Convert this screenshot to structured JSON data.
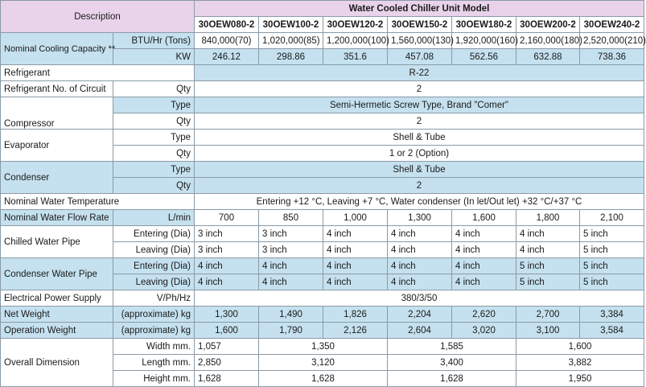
{
  "header": {
    "description": "Description",
    "title": "Water Cooled Chiller Unit Model",
    "models": [
      "30OEW080-2",
      "30OEW100-2",
      "30OEW120-2",
      "30OEW150-2",
      "30OEW180-2",
      "30OEW200-2",
      "30OEW240-2"
    ]
  },
  "capacity": {
    "label": "Nominal Cooling Capacity **",
    "btu_unit": "BTU/Hr (Tons)",
    "btu_values": [
      "840,000(70)",
      "1,020,000(85)",
      "1,200,000(100)",
      "1,560,000(130)",
      "1,920,000(160)",
      "2,160,000(180)",
      "2,520,000(210)"
    ],
    "kw_unit": "KW",
    "kw_values": [
      "246.12",
      "298.86",
      "351.6",
      "457.08",
      "562.56",
      "632.88",
      "738.36"
    ]
  },
  "refrigerant": {
    "label": "Refrigerant",
    "value": "R-22"
  },
  "circuit": {
    "label": "Refrigerant No. of Circuit",
    "unit": "Qty",
    "value": "2"
  },
  "compressor": {
    "label": "Compressor",
    "type_label": "Type",
    "type_value": "Semi-Hermetic Screw Type, Brand \"Comer\"",
    "qty_label": "Qty",
    "qty_value": "2"
  },
  "evaporator": {
    "label": "Evaporator",
    "type_label": "Type",
    "type_value": "Shell & Tube",
    "qty_label": "Qty",
    "qty_value": "1 or 2 (Option)"
  },
  "condenser": {
    "label": "Condenser",
    "type_label": "Type",
    "type_value": "Shell & Tube",
    "qty_label": "Qty",
    "qty_value": "2"
  },
  "water_temp": {
    "label": "Nominal Water Temperature",
    "value": "Entering +12 °C, Leaving +7 °C, Water condenser (In let/Out let) +32 °C/+37 °C"
  },
  "flow_rate": {
    "label": "Nominal Water Flow Rate",
    "unit": "L/min",
    "values": [
      "700",
      "850",
      "1,000",
      "1,300",
      "1,600",
      "1,800",
      "2,100"
    ]
  },
  "chilled_pipe": {
    "label": "Chilled Water Pipe",
    "entering_label": "Entering (Dia)",
    "entering": [
      "3 inch",
      "3 inch",
      "4 inch",
      "4 inch",
      "4 inch",
      "4 inch",
      "5 inch"
    ],
    "leaving_label": "Leaving (Dia)",
    "leaving": [
      "3 inch",
      "3 inch",
      "4 inch",
      "4 inch",
      "4 inch",
      "4 inch",
      "5 inch"
    ]
  },
  "condenser_pipe": {
    "label": "Condenser Water Pipe",
    "entering_label": "Entering (Dia)",
    "entering": [
      "4 inch",
      "4 inch",
      "4 inch",
      "4 inch",
      "4 inch",
      "5 inch",
      "5 inch"
    ],
    "leaving_label": "Leaving (Dia)",
    "leaving": [
      "4 inch",
      "4 inch",
      "4 inch",
      "4 inch",
      "4 inch",
      "5 inch",
      "5 inch"
    ]
  },
  "power": {
    "label": "Electrical Power Supply",
    "unit": "V/Ph/Hz",
    "value": "380/3/50"
  },
  "net_weight": {
    "label": "Net Weight",
    "unit": "(approximate) kg",
    "values": [
      "1,300",
      "1,490",
      "1,826",
      "2,204",
      "2,620",
      "2,700",
      "3,384"
    ]
  },
  "op_weight": {
    "label": "Operation Weight",
    "unit": "(approximate) kg",
    "values": [
      "1,600",
      "1,790",
      "2,126",
      "2,604",
      "3,020",
      "3,100",
      "3,584"
    ]
  },
  "dimension": {
    "label": "Overall Dimension",
    "width_label": "Width  mm.",
    "width": [
      "1,057",
      "1,350",
      "1,585",
      "1,600"
    ],
    "length_label": "Length  mm.",
    "length": [
      "2,850",
      "3,120",
      "3,400",
      "3,882"
    ],
    "height_label": "Height  mm.",
    "height": [
      "1,628",
      "1,628",
      "1,628",
      "1,950"
    ]
  }
}
